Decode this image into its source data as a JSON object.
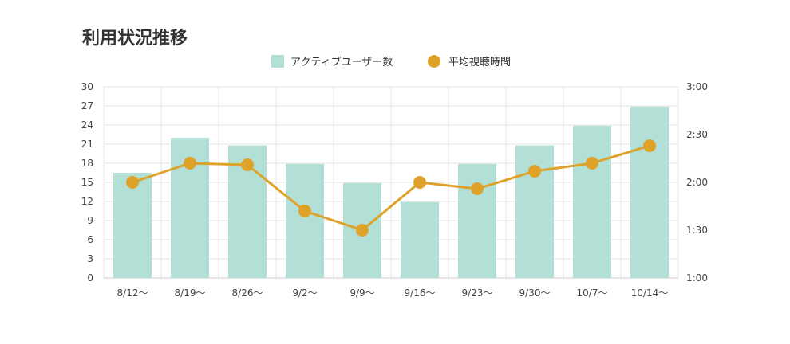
{
  "chart_data": {
    "type": "bar",
    "title": "利用状況推移",
    "categories": [
      "8/12〜",
      "8/19〜",
      "8/26〜",
      "9/2〜",
      "9/9〜",
      "9/16〜",
      "9/23〜",
      "9/30〜",
      "10/7〜",
      "10/14〜"
    ],
    "series": [
      {
        "name": "アクティブユーザー数",
        "type": "bar",
        "axis": "left",
        "color": "#b2e0d6",
        "values": [
          16.5,
          22,
          20.8,
          17.9,
          14.9,
          11.9,
          17.9,
          20.8,
          23.9,
          26.9
        ]
      },
      {
        "name": "平均視聴時間",
        "type": "line",
        "axis": "right",
        "color": "#dea22a",
        "values": [
          "2:00",
          "2:12",
          "2:11",
          "1:42",
          "1:30",
          "2:00",
          "1:56",
          "2:07",
          "2:12",
          "2:23"
        ]
      }
    ],
    "y_left": {
      "min": 0,
      "max": 30,
      "ticks": [
        "0",
        "3",
        "6",
        "9",
        "12",
        "15",
        "18",
        "21",
        "24",
        "27",
        "30"
      ]
    },
    "y_right": {
      "min": "1:00",
      "max": "3:00",
      "ticks": [
        "1:00",
        "1:30",
        "2:00",
        "2:30",
        "3:00"
      ]
    },
    "grid": true,
    "legend_position": "top-center"
  }
}
